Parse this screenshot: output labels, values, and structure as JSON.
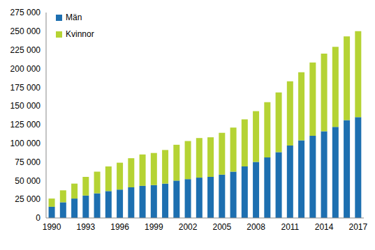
{
  "chart_data": {
    "type": "bar",
    "stacked": true,
    "grid": false,
    "legend": "upper left",
    "categories": [
      "1990",
      null,
      null,
      "1993",
      null,
      null,
      "1996",
      null,
      null,
      "1999",
      null,
      null,
      "2002",
      null,
      null,
      "2005",
      null,
      null,
      "2008",
      null,
      null,
      "2011",
      null,
      null,
      "2014",
      null,
      null,
      "2017"
    ],
    "series": [
      {
        "name": "Män",
        "color": "#1d6fb0",
        "values": [
          15000,
          21000,
          26000,
          30000,
          33000,
          36000,
          38000,
          41000,
          43000,
          44000,
          46000,
          50000,
          52000,
          54000,
          55000,
          58000,
          62000,
          69000,
          75000,
          81000,
          88000,
          97000,
          104000,
          110000,
          116000,
          122000,
          131000,
          135000
        ]
      },
      {
        "name": "Kvinnor",
        "color": "#b5d334",
        "values": [
          11000,
          16000,
          20000,
          25000,
          29000,
          33000,
          36000,
          39000,
          42000,
          43000,
          45000,
          48000,
          51000,
          53000,
          53000,
          56000,
          59000,
          63000,
          68000,
          74000,
          80000,
          86000,
          91000,
          98000,
          104000,
          107000,
          112000,
          115000
        ]
      }
    ],
    "ylim": [
      0,
      275000
    ],
    "yticks": [
      0,
      {
        "value": 25000,
        "label": "25 000"
      },
      {
        "value": 50000,
        "label": "50 000"
      },
      {
        "value": 75000,
        "label": "75 000"
      },
      {
        "value": 100000,
        "label": "100 000"
      },
      {
        "value": 125000,
        "label": "125 000"
      },
      {
        "value": 150000,
        "label": "150 000"
      },
      {
        "value": 175000,
        "label": "175 000"
      },
      {
        "value": 200000,
        "label": "200 000"
      },
      {
        "value": 225000,
        "label": "225 000"
      },
      {
        "value": 250000,
        "label": "250 000"
      },
      {
        "value": 275000,
        "label": "275 000"
      }
    ]
  }
}
